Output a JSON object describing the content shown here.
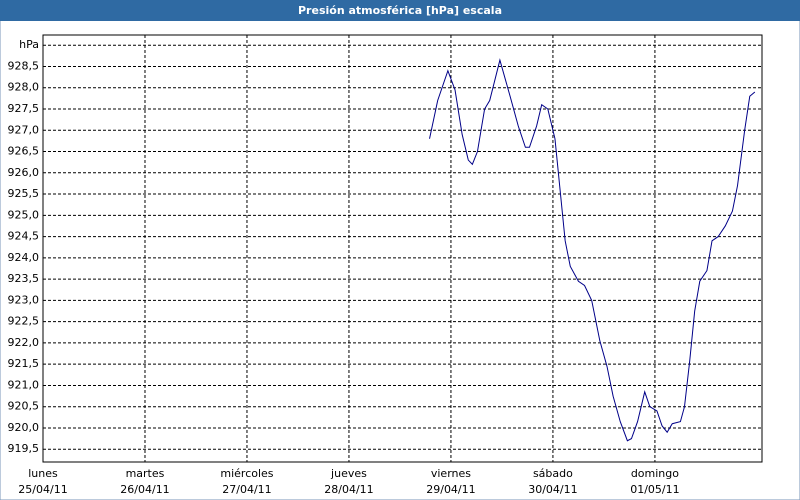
{
  "chart_data": {
    "type": "line",
    "title": "Presión atmosférica [hPa] escala",
    "x": [
      3.79,
      3.87,
      3.97,
      4.04,
      4.11,
      4.17,
      4.21,
      4.26,
      4.33,
      4.38,
      4.48,
      4.58,
      4.66,
      4.73,
      4.77,
      4.84,
      4.89,
      4.95,
      5.02,
      5.07,
      5.12,
      5.17,
      5.25,
      5.31,
      5.38,
      5.46,
      5.53,
      5.59,
      5.66,
      5.73,
      5.77,
      5.83,
      5.9,
      5.95,
      6.02,
      6.07,
      6.12,
      6.17,
      6.25,
      6.29,
      6.34,
      6.39,
      6.44,
      6.51,
      6.56,
      6.62,
      6.69,
      6.76,
      6.81,
      6.88,
      6.93,
      6.98
    ],
    "series": [
      {
        "color": "#000088",
        "values": [
          926.8,
          927.7,
          928.4,
          927.95,
          926.9,
          926.3,
          926.2,
          926.5,
          927.5,
          927.7,
          928.65,
          927.8,
          927.1,
          926.6,
          926.6,
          927.1,
          927.6,
          927.5,
          926.8,
          925.6,
          924.4,
          923.8,
          923.45,
          923.35,
          923.0,
          922.05,
          921.45,
          920.75,
          920.15,
          919.7,
          919.75,
          920.15,
          920.85,
          920.5,
          920.4,
          920.05,
          919.9,
          920.1,
          920.15,
          920.5,
          921.55,
          922.75,
          923.45,
          923.7,
          924.4,
          924.5,
          924.75,
          925.1,
          925.7,
          927.0,
          927.8,
          927.9
        ]
      }
    ],
    "xlim": [
      0,
      7.05
    ],
    "xticks": [
      {
        "value": 0,
        "label": "lunes",
        "date": "25/04/11"
      },
      {
        "value": 1,
        "label": "martes",
        "date": "26/04/11"
      },
      {
        "value": 2,
        "label": "miércoles",
        "date": "27/04/11"
      },
      {
        "value": 3,
        "label": "jueves",
        "date": "28/04/11"
      },
      {
        "value": 4,
        "label": "viernes",
        "date": "29/04/11"
      },
      {
        "value": 5,
        "label": "sábado",
        "date": "30/04/11"
      },
      {
        "value": 6,
        "label": "domingo",
        "date": "01/05/11"
      }
    ],
    "ylim": [
      919.2,
      929.24
    ],
    "yticks": [
      {
        "value": 919.5,
        "label": "919,5"
      },
      {
        "value": 920,
        "label": "920,0"
      },
      {
        "value": 920.5,
        "label": "920,5"
      },
      {
        "value": 921,
        "label": "921,0"
      },
      {
        "value": 921.5,
        "label": "921,5"
      },
      {
        "value": 922,
        "label": "922,0"
      },
      {
        "value": 922.5,
        "label": "922,5"
      },
      {
        "value": 923,
        "label": "923,0"
      },
      {
        "value": 923.5,
        "label": "923,5"
      },
      {
        "value": 924,
        "label": "924,0"
      },
      {
        "value": 924.5,
        "label": "924,5"
      },
      {
        "value": 925,
        "label": "925,0"
      },
      {
        "value": 925.5,
        "label": "925,5"
      },
      {
        "value": 926,
        "label": "926,0"
      },
      {
        "value": 926.5,
        "label": "926,5"
      },
      {
        "value": 927,
        "label": "927,0"
      },
      {
        "value": 927.5,
        "label": "927,5"
      },
      {
        "value": 928,
        "label": "928,0"
      },
      {
        "value": 928.5,
        "label": "928,5"
      },
      {
        "value": 929,
        "label": "hPa"
      }
    ],
    "grid": true
  }
}
